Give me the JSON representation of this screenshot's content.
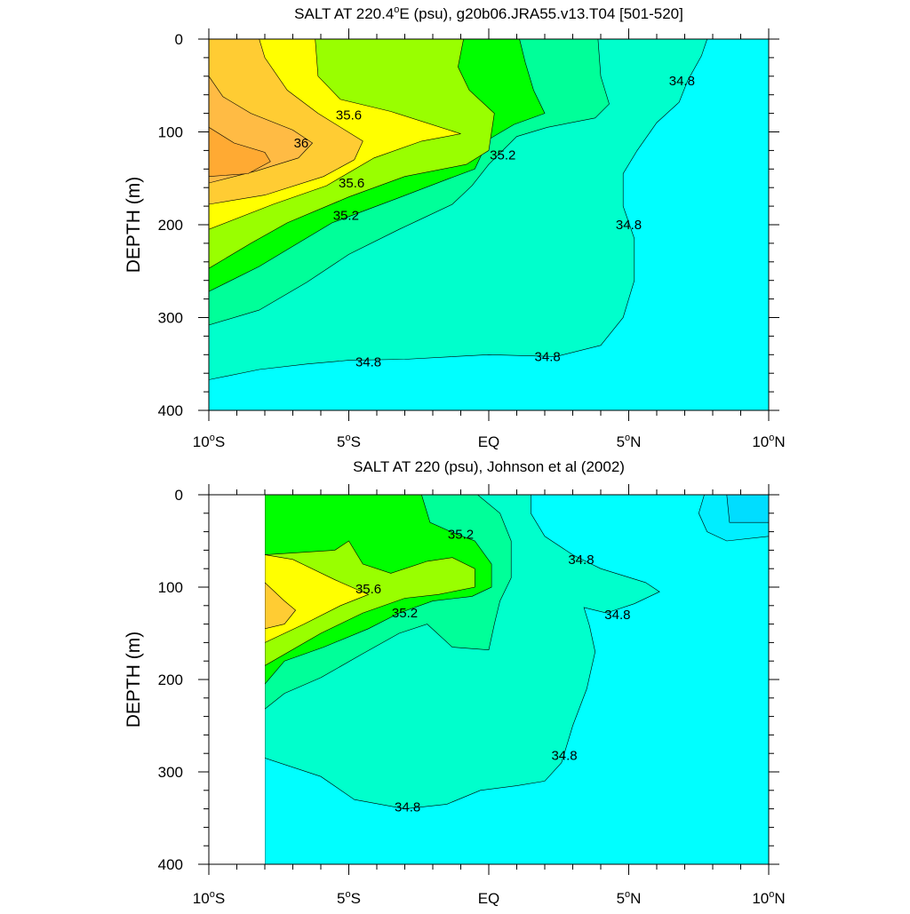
{
  "chart_data": [
    {
      "type": "contour",
      "title": "SALT AT 220.4°E (psu), g20b06.JRA55.v13.T04 [501-520]",
      "title_parts": {
        "pre": "SALT AT 220.4",
        "sup": "o",
        "post": "E (psu), g20b06.JRA55.v13.T04 [501-520]"
      },
      "ylabel": "DEPTH (m)",
      "xlim": [
        -10,
        10
      ],
      "ylim": [
        0,
        400
      ],
      "y_reversed": true,
      "x_ticks": [
        {
          "value": -10,
          "num": "10",
          "sup": "o",
          "hemi": "S"
        },
        {
          "value": -5,
          "num": "5",
          "sup": "o",
          "hemi": "S"
        },
        {
          "value": 0,
          "num": "EQ",
          "sup": "",
          "hemi": ""
        },
        {
          "value": 5,
          "num": "5",
          "sup": "o",
          "hemi": "N"
        },
        {
          "value": 10,
          "num": "10",
          "sup": "o",
          "hemi": "N"
        }
      ],
      "y_ticks": [
        "0",
        "100",
        "200",
        "300",
        "400"
      ],
      "contour_levels": [
        34.8,
        35.0,
        35.2,
        35.4,
        35.6,
        35.8,
        36.0,
        36.2
      ],
      "contour_labels": [
        {
          "text": "35.6",
          "x": -5.0,
          "y": 82
        },
        {
          "text": "36",
          "x": -6.7,
          "y": 112
        },
        {
          "text": "35.6",
          "x": -4.9,
          "y": 155
        },
        {
          "text": "35.2",
          "x": -5.1,
          "y": 190
        },
        {
          "text": "35.2",
          "x": 0.5,
          "y": 125
        },
        {
          "text": "34.8",
          "x": 6.9,
          "y": 45
        },
        {
          "text": "34.8",
          "x": 5.0,
          "y": 200
        },
        {
          "text": "34.8",
          "x": -4.3,
          "y": 348
        },
        {
          "text": "34.8",
          "x": 2.1,
          "y": 342
        }
      ],
      "color_regions": [
        {
          "level": 34.6,
          "color": "#00ffff",
          "polygon": [
            [
              -10,
              0
            ],
            [
              10,
              0
            ],
            [
              10,
              400
            ],
            [
              -10,
              400
            ]
          ]
        },
        {
          "level": 34.8,
          "color": "#00ffcc",
          "polygon": [
            [
              -10,
              0
            ],
            [
              7.8,
              0
            ],
            [
              7.6,
              18
            ],
            [
              7.1,
              45
            ],
            [
              6.8,
              68
            ],
            [
              6.0,
              90
            ],
            [
              5.3,
              120
            ],
            [
              4.8,
              145
            ],
            [
              4.8,
              180
            ],
            [
              5.2,
              215
            ],
            [
              5.2,
              260
            ],
            [
              4.8,
              300
            ],
            [
              4.0,
              330
            ],
            [
              2.4,
              342
            ],
            [
              0,
              340
            ],
            [
              -3.0,
              345
            ],
            [
              -5.0,
              346
            ],
            [
              -6.5,
              350
            ],
            [
              -8.2,
              356
            ],
            [
              -10,
              367
            ]
          ]
        },
        {
          "level": 35.0,
          "color": "#00ff99",
          "polygon": [
            [
              -10,
              0
            ],
            [
              3.9,
              0
            ],
            [
              4.0,
              40
            ],
            [
              4.3,
              70
            ],
            [
              3.8,
              85
            ],
            [
              2.1,
              95
            ],
            [
              1.0,
              105
            ],
            [
              0.0,
              135
            ],
            [
              -0.6,
              158
            ],
            [
              -1.3,
              178
            ],
            [
              -2.5,
              195
            ],
            [
              -3.2,
              205
            ],
            [
              -5.0,
              232
            ],
            [
              -6.5,
              262
            ],
            [
              -8.2,
              292
            ],
            [
              -10,
              308
            ]
          ]
        },
        {
          "level": 35.2,
          "color": "#00ff00",
          "polygon": [
            [
              -10,
              0
            ],
            [
              1.1,
              0
            ],
            [
              1.3,
              25
            ],
            [
              1.6,
              55
            ],
            [
              2.0,
              80
            ],
            [
              0.9,
              92
            ],
            [
              0.0,
              108
            ],
            [
              -0.5,
              140
            ],
            [
              -1.4,
              150
            ],
            [
              -3.3,
              172
            ],
            [
              -5.6,
              198
            ],
            [
              -7.1,
              225
            ],
            [
              -8.2,
              245
            ],
            [
              -10,
              272
            ]
          ]
        },
        {
          "level": 35.4,
          "color": "#99ff00",
          "polygon": [
            [
              -10,
              0
            ],
            [
              -0.9,
              0
            ],
            [
              -1.1,
              30
            ],
            [
              -0.7,
              55
            ],
            [
              0.2,
              80
            ],
            [
              0.0,
              120
            ],
            [
              -0.8,
              135
            ],
            [
              -3.0,
              148
            ],
            [
              -5.0,
              170
            ],
            [
              -7.2,
              198
            ],
            [
              -8.5,
              220
            ],
            [
              -10,
              247
            ]
          ]
        },
        {
          "level": 35.6,
          "color": "#ffff00",
          "polygon": [
            [
              -10,
              0
            ],
            [
              -6.2,
              0
            ],
            [
              -6.1,
              40
            ],
            [
              -5.3,
              65
            ],
            [
              -3.5,
              78
            ],
            [
              -1.0,
              102
            ],
            [
              -2.4,
              110
            ],
            [
              -4.1,
              128
            ],
            [
              -5.8,
              158
            ],
            [
              -7.7,
              178
            ],
            [
              -10,
              205
            ]
          ]
        },
        {
          "level": 35.8,
          "color": "#ffcc33",
          "polygon": [
            [
              -10,
              0
            ],
            [
              -8.2,
              0
            ],
            [
              -8.0,
              20
            ],
            [
              -7.2,
              55
            ],
            [
              -6.1,
              80
            ],
            [
              -4.5,
              110
            ],
            [
              -4.8,
              130
            ],
            [
              -5.9,
              148
            ],
            [
              -8.0,
              168
            ],
            [
              -10,
              178
            ]
          ]
        },
        {
          "level": 36.0,
          "color": "#ffbb44",
          "polygon": [
            [
              -10,
              40
            ],
            [
              -9.5,
              62
            ],
            [
              -8.5,
              80
            ],
            [
              -7.0,
              98
            ],
            [
              -6.3,
              112
            ],
            [
              -6.8,
              128
            ],
            [
              -8.3,
              142
            ],
            [
              -10,
              155
            ]
          ]
        },
        {
          "level": 36.2,
          "color": "#ffaa33",
          "polygon": [
            [
              -10,
              95
            ],
            [
              -9.1,
              112
            ],
            [
              -8.0,
              122
            ],
            [
              -7.8,
              132
            ],
            [
              -8.6,
              145
            ],
            [
              -10,
              148
            ]
          ]
        }
      ]
    },
    {
      "type": "contour",
      "title": "SALT AT 220 (psu), Johnson et al (2002)",
      "ylabel": "DEPTH (m)",
      "xlim": [
        -10,
        10
      ],
      "ylim": [
        0,
        400
      ],
      "y_reversed": true,
      "data_xmin": -8.0,
      "x_ticks": [
        {
          "value": -10,
          "num": "10",
          "sup": "o",
          "hemi": "S"
        },
        {
          "value": -5,
          "num": "5",
          "sup": "o",
          "hemi": "S"
        },
        {
          "value": 0,
          "num": "EQ",
          "sup": "",
          "hemi": ""
        },
        {
          "value": 5,
          "num": "5",
          "sup": "o",
          "hemi": "N"
        },
        {
          "value": 10,
          "num": "10",
          "sup": "o",
          "hemi": "N"
        }
      ],
      "y_ticks": [
        "0",
        "100",
        "200",
        "300",
        "400"
      ],
      "contour_levels": [
        34.6,
        34.8,
        35.0,
        35.2,
        35.4,
        35.6,
        35.8
      ],
      "contour_labels": [
        {
          "text": "35.2",
          "x": -1.0,
          "y": 43
        },
        {
          "text": "35.6",
          "x": -4.3,
          "y": 102
        },
        {
          "text": "35.2",
          "x": -3.0,
          "y": 128
        },
        {
          "text": "34.8",
          "x": 3.3,
          "y": 70
        },
        {
          "text": "34.8",
          "x": 4.6,
          "y": 130
        },
        {
          "text": "34.8",
          "x": 2.7,
          "y": 282
        },
        {
          "text": "34.8",
          "x": -2.9,
          "y": 338
        }
      ],
      "color_regions": [
        {
          "level": 34.6,
          "color": "#00ffff",
          "polygon": [
            [
              -8,
              0
            ],
            [
              10,
              0
            ],
            [
              10,
              400
            ],
            [
              -8,
              400
            ]
          ]
        },
        {
          "level": 34.8,
          "color": "#00ffcc",
          "polygon": [
            [
              -8,
              0
            ],
            [
              1.5,
              0
            ],
            [
              1.5,
              20
            ],
            [
              2.0,
              45
            ],
            [
              3.0,
              65
            ],
            [
              4.0,
              80
            ],
            [
              5.6,
              95
            ],
            [
              6.1,
              105
            ],
            [
              5.2,
              118
            ],
            [
              4.2,
              128
            ],
            [
              3.4,
              122
            ],
            [
              3.6,
              142
            ],
            [
              3.8,
              170
            ],
            [
              3.5,
              210
            ],
            [
              3.0,
              250
            ],
            [
              2.6,
              290
            ],
            [
              2.0,
              310
            ],
            [
              1.0,
              315
            ],
            [
              -0.3,
              320
            ],
            [
              -1.5,
              335
            ],
            [
              -3.0,
              340
            ],
            [
              -4.8,
              330
            ],
            [
              -6.0,
              305
            ],
            [
              -8,
              285
            ]
          ]
        },
        {
          "level": 35.0,
          "color": "#00ff99",
          "polygon": [
            [
              -8,
              0
            ],
            [
              -0.4,
              0
            ],
            [
              0.4,
              20
            ],
            [
              0.8,
              50
            ],
            [
              0.8,
              90
            ],
            [
              0.4,
              115
            ],
            [
              0.2,
              140
            ],
            [
              0.0,
              168
            ],
            [
              -1.3,
              165
            ],
            [
              -2.2,
              140
            ],
            [
              -3.2,
              150
            ],
            [
              -4.5,
              172
            ],
            [
              -6.0,
              198
            ],
            [
              -7.3,
              215
            ],
            [
              -8,
              232
            ]
          ]
        },
        {
          "level": 35.2,
          "color": "#00ff00",
          "polygon": [
            [
              -8,
              0
            ],
            [
              -2.4,
              0
            ],
            [
              -2.1,
              30
            ],
            [
              -1.2,
              42
            ],
            [
              -0.5,
              50
            ],
            [
              0.1,
              75
            ],
            [
              0.1,
              100
            ],
            [
              -0.6,
              110
            ],
            [
              -2.0,
              115
            ],
            [
              -3.2,
              128
            ],
            [
              -4.3,
              145
            ],
            [
              -5.9,
              165
            ],
            [
              -7.3,
              180
            ],
            [
              -8,
              205
            ]
          ]
        },
        {
          "level": 35.4,
          "color": "#99ff00",
          "polygon": [
            [
              -8,
              65
            ],
            [
              -5.5,
              60
            ],
            [
              -5.0,
              50
            ],
            [
              -4.5,
              75
            ],
            [
              -3.5,
              85
            ],
            [
              -2.2,
              72
            ],
            [
              -1.3,
              68
            ],
            [
              -0.5,
              80
            ],
            [
              -0.5,
              100
            ],
            [
              -1.8,
              108
            ],
            [
              -3.0,
              112
            ],
            [
              -4.5,
              128
            ],
            [
              -6.0,
              150
            ],
            [
              -8,
              185
            ]
          ]
        },
        {
          "level": 35.6,
          "color": "#ffff00",
          "polygon": [
            [
              -8,
              65
            ],
            [
              -7.0,
              70
            ],
            [
              -5.5,
              92
            ],
            [
              -4.3,
              108
            ],
            [
              -5.3,
              120
            ],
            [
              -6.6,
              140
            ],
            [
              -8,
              160
            ]
          ]
        },
        {
          "level": 35.8,
          "color": "#ffcc33",
          "polygon": [
            [
              -8,
              95
            ],
            [
              -7.3,
              115
            ],
            [
              -6.9,
              125
            ],
            [
              -7.3,
              140
            ],
            [
              -8,
              145
            ]
          ]
        },
        {
          "level": 34.4,
          "color": "#00eeff",
          "polygon": [
            [
              7.7,
              0
            ],
            [
              10,
              0
            ],
            [
              10,
              45
            ],
            [
              8.5,
              50
            ],
            [
              7.8,
              40
            ],
            [
              7.5,
              20
            ]
          ]
        },
        {
          "level": 34.2,
          "color": "#00ddff",
          "polygon": [
            [
              8.5,
              0
            ],
            [
              10,
              0
            ],
            [
              10,
              30
            ],
            [
              8.6,
              30
            ]
          ]
        }
      ]
    }
  ]
}
